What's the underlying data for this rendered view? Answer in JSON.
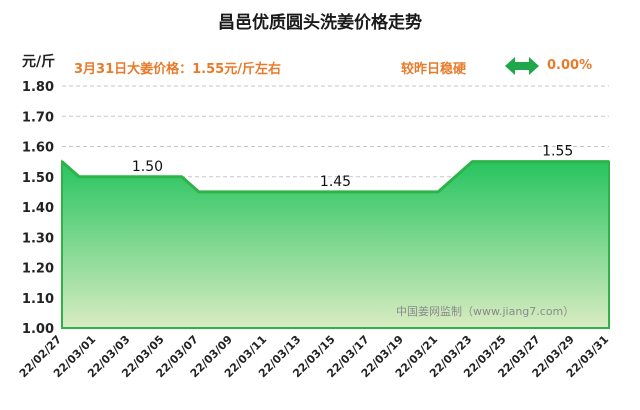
{
  "header": {
    "title": "昌邑优质圆头洗姜价格走势",
    "unit": "元/斤",
    "price_note": "3月31日大姜价格：1.55元/斤左右",
    "trend_label": "较昨日稳硬",
    "trend_value": "0.00%"
  },
  "chart_data": {
    "type": "area",
    "title": "昌邑优质圆头洗姜价格走势",
    "ylabel": "元/斤",
    "xlabel": "",
    "ylim": [
      1.0,
      1.8
    ],
    "yticks": [
      "1.00",
      "1.10",
      "1.20",
      "1.30",
      "1.40",
      "1.50",
      "1.60",
      "1.70",
      "1.80"
    ],
    "xticks": [
      "22/02/27",
      "22/03/01",
      "22/03/03",
      "22/03/05",
      "22/03/07",
      "22/03/09",
      "22/03/11",
      "22/03/13",
      "22/03/15",
      "22/03/17",
      "22/03/19",
      "22/03/21",
      "22/03/23",
      "22/03/25",
      "22/03/27",
      "22/03/29",
      "22/03/31"
    ],
    "x": [
      "2022-02-27",
      "2022-02-28",
      "2022-03-01",
      "2022-03-02",
      "2022-03-03",
      "2022-03-04",
      "2022-03-05",
      "2022-03-06",
      "2022-03-07",
      "2022-03-08",
      "2022-03-09",
      "2022-03-10",
      "2022-03-11",
      "2022-03-12",
      "2022-03-13",
      "2022-03-14",
      "2022-03-15",
      "2022-03-16",
      "2022-03-17",
      "2022-03-18",
      "2022-03-19",
      "2022-03-20",
      "2022-03-21",
      "2022-03-22",
      "2022-03-23",
      "2022-03-24",
      "2022-03-25",
      "2022-03-26",
      "2022-03-27",
      "2022-03-28",
      "2022-03-29",
      "2022-03-30",
      "2022-03-31"
    ],
    "values": [
      1.55,
      1.5,
      1.5,
      1.5,
      1.5,
      1.5,
      1.5,
      1.5,
      1.45,
      1.45,
      1.45,
      1.45,
      1.45,
      1.45,
      1.45,
      1.45,
      1.45,
      1.45,
      1.45,
      1.45,
      1.45,
      1.45,
      1.45,
      1.5,
      1.55,
      1.55,
      1.55,
      1.55,
      1.55,
      1.55,
      1.55,
      1.55,
      1.55
    ],
    "data_labels": [
      {
        "x": "2022-03-04",
        "label": "1.50"
      },
      {
        "x": "2022-03-15",
        "label": "1.45"
      },
      {
        "x": "2022-03-28",
        "label": "1.55"
      }
    ],
    "grid": true,
    "watermark": "中国姜网监制（www.jiang7.com）",
    "colors": {
      "line": "#2db34a",
      "fill_top": "#27c45f",
      "fill_bottom": "#d9ecc2",
      "grid": "#c8c8c8",
      "accent": "#e87a2a"
    }
  }
}
